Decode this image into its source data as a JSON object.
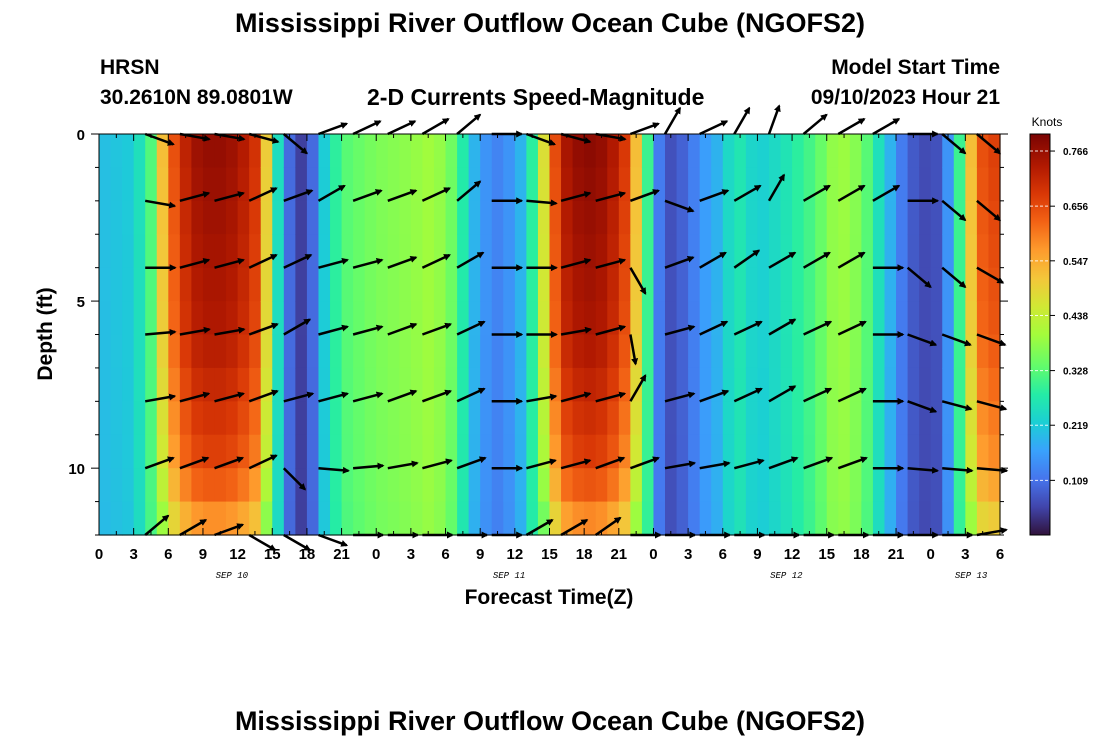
{
  "header": {
    "title": "Mississippi River Outflow Ocean Cube (NGOFS2)",
    "station": "HRSN",
    "coords": "30.2610N  89.0801W",
    "subtitle": "2-D Currents Speed-Magnitude",
    "start_label": "Model Start Time",
    "start_value": "09/10/2023 Hour 21"
  },
  "footer": {
    "title": "Mississippi River Outflow Ocean Cube (NGOFS2)"
  },
  "chart_data": {
    "type": "heatmap",
    "title": "2-D Currents Speed-Magnitude",
    "xlabel": "Forecast Time(Z)",
    "ylabel": "Depth (ft)",
    "xlim": [
      0,
      78
    ],
    "ylim": [
      0,
      12
    ],
    "y_inverted": true,
    "x_tick_labels": [
      "0",
      "3",
      "6",
      "9",
      "12",
      "15",
      "18",
      "21",
      "0",
      "3",
      "6",
      "9",
      "12",
      "15",
      "18",
      "21",
      "0",
      "3",
      "6",
      "9",
      "12",
      "15",
      "18",
      "21",
      "0",
      "3",
      "6"
    ],
    "y_tick_labels": [
      "0",
      "5",
      "10"
    ],
    "y_ticks": [
      0,
      5,
      10
    ],
    "date_labels": [
      {
        "label": "SEP 10",
        "x": 11.5
      },
      {
        "label": "SEP 11",
        "x": 35.5
      },
      {
        "label": "SEP 12",
        "x": 59.5
      },
      {
        "label": "SEP 13",
        "x": 75.5
      }
    ],
    "colorbar": {
      "title": "Knots",
      "ticks": [
        "0.766",
        "0.656",
        "0.547",
        "0.438",
        "0.328",
        "0.219",
        "0.109"
      ],
      "min": 0.0,
      "max": 0.8
    },
    "speed_by_hour": [
      {
        "x": 0,
        "v": 0.2
      },
      {
        "x": 3,
        "v": 0.22
      },
      {
        "x": 4.5,
        "v": 0.32
      },
      {
        "x": 5.5,
        "v": 0.5
      },
      {
        "x": 6.5,
        "v": 0.62
      },
      {
        "x": 8,
        "v": 0.72
      },
      {
        "x": 10,
        "v": 0.74
      },
      {
        "x": 12,
        "v": 0.72
      },
      {
        "x": 13.5,
        "v": 0.66
      },
      {
        "x": 14.5,
        "v": 0.48
      },
      {
        "x": 15.5,
        "v": 0.25
      },
      {
        "x": 16.5,
        "v": 0.1
      },
      {
        "x": 17.5,
        "v": 0.05
      },
      {
        "x": 18.5,
        "v": 0.1
      },
      {
        "x": 19.5,
        "v": 0.22
      },
      {
        "x": 21,
        "v": 0.32
      },
      {
        "x": 24,
        "v": 0.36
      },
      {
        "x": 27,
        "v": 0.38
      },
      {
        "x": 29,
        "v": 0.4
      },
      {
        "x": 31,
        "v": 0.33
      },
      {
        "x": 32,
        "v": 0.22
      },
      {
        "x": 33,
        "v": 0.16
      },
      {
        "x": 34.5,
        "v": 0.13
      },
      {
        "x": 36,
        "v": 0.16
      },
      {
        "x": 37,
        "v": 0.22
      },
      {
        "x": 38,
        "v": 0.35
      },
      {
        "x": 39,
        "v": 0.55
      },
      {
        "x": 40,
        "v": 0.7
      },
      {
        "x": 42,
        "v": 0.75
      },
      {
        "x": 44,
        "v": 0.73
      },
      {
        "x": 45.5,
        "v": 0.65
      },
      {
        "x": 46.5,
        "v": 0.5
      },
      {
        "x": 47.5,
        "v": 0.3
      },
      {
        "x": 48.5,
        "v": 0.12
      },
      {
        "x": 49.5,
        "v": 0.07
      },
      {
        "x": 51,
        "v": 0.1
      },
      {
        "x": 52,
        "v": 0.15
      },
      {
        "x": 54,
        "v": 0.2
      },
      {
        "x": 55,
        "v": 0.28
      },
      {
        "x": 57,
        "v": 0.22
      },
      {
        "x": 59,
        "v": 0.25
      },
      {
        "x": 62,
        "v": 0.32
      },
      {
        "x": 64,
        "v": 0.4
      },
      {
        "x": 66,
        "v": 0.36
      },
      {
        "x": 68,
        "v": 0.22
      },
      {
        "x": 69.5,
        "v": 0.12
      },
      {
        "x": 71,
        "v": 0.06
      },
      {
        "x": 72.5,
        "v": 0.07
      },
      {
        "x": 73.5,
        "v": 0.15
      },
      {
        "x": 74.5,
        "v": 0.3
      },
      {
        "x": 75.5,
        "v": 0.5
      },
      {
        "x": 76.5,
        "v": 0.62
      },
      {
        "x": 78,
        "v": 0.65
      }
    ],
    "depth_factor": [
      {
        "d": 0,
        "f": 1.05
      },
      {
        "d": 6,
        "f": 1.0
      },
      {
        "d": 10,
        "f": 0.9
      },
      {
        "d": 12,
        "f": 0.75
      }
    ],
    "vectors": {
      "depths": [
        0,
        2,
        4,
        6,
        8,
        10,
        12
      ],
      "x": [
        4,
        7,
        10,
        13,
        16,
        19,
        22,
        25,
        28,
        31,
        34,
        37,
        40,
        43,
        46,
        49,
        52,
        55,
        58,
        61,
        64,
        67,
        70,
        73,
        76
      ],
      "directions_deg": [
        [
          -20,
          -10,
          -10,
          -15,
          -40,
          20,
          25,
          25,
          30,
          40,
          0,
          -20,
          -15,
          -10,
          20,
          60,
          25,
          60,
          70,
          40,
          30,
          30,
          0,
          -40,
          -40
        ],
        [
          -10,
          15,
          15,
          25,
          20,
          30,
          20,
          20,
          25,
          40,
          0,
          -5,
          15,
          15,
          20,
          -20,
          20,
          30,
          60,
          30,
          30,
          30,
          0,
          -40,
          -40
        ],
        [
          0,
          15,
          15,
          25,
          25,
          15,
          15,
          20,
          25,
          30,
          0,
          0,
          15,
          15,
          -60,
          20,
          30,
          35,
          30,
          30,
          30,
          0,
          -40,
          -40,
          -30
        ],
        [
          5,
          10,
          10,
          20,
          30,
          15,
          15,
          20,
          20,
          25,
          0,
          0,
          10,
          15,
          -80,
          15,
          25,
          25,
          30,
          25,
          25,
          0,
          -20,
          -20,
          -20
        ],
        [
          10,
          15,
          15,
          20,
          15,
          15,
          15,
          20,
          20,
          25,
          0,
          10,
          15,
          15,
          60,
          15,
          20,
          25,
          30,
          25,
          25,
          0,
          -20,
          -15,
          -15
        ],
        [
          20,
          20,
          20,
          25,
          -45,
          -5,
          5,
          10,
          15,
          20,
          0,
          15,
          15,
          20,
          20,
          10,
          10,
          15,
          20,
          20,
          20,
          0,
          -5,
          -5,
          -5
        ],
        [
          40,
          30,
          20,
          -30,
          -30,
          -20,
          0,
          0,
          0,
          0,
          0,
          30,
          30,
          35,
          0,
          0,
          0,
          0,
          0,
          0,
          0,
          0,
          0,
          0,
          10
        ]
      ]
    }
  }
}
